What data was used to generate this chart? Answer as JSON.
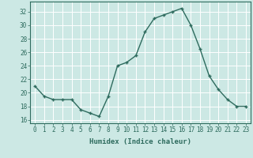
{
  "x": [
    0,
    1,
    2,
    3,
    4,
    5,
    6,
    7,
    8,
    9,
    10,
    11,
    12,
    13,
    14,
    15,
    16,
    17,
    18,
    19,
    20,
    21,
    22,
    23
  ],
  "y": [
    21,
    19.5,
    19,
    19,
    19,
    17.5,
    17,
    16.5,
    19.5,
    24,
    24.5,
    25.5,
    29,
    31,
    31.5,
    32,
    32.5,
    30,
    26.5,
    22.5,
    20.5,
    19,
    18,
    18
  ],
  "line_color": "#2e6b5e",
  "marker_color": "#2e6b5e",
  "bg_color": "#cce8e4",
  "grid_color": "#ffffff",
  "xlabel": "Humidex (Indice chaleur)",
  "ylim": [
    15.5,
    33.5
  ],
  "xlim": [
    -0.5,
    23.5
  ],
  "yticks": [
    16,
    18,
    20,
    22,
    24,
    26,
    28,
    30,
    32
  ],
  "xticks": [
    0,
    1,
    2,
    3,
    4,
    5,
    6,
    7,
    8,
    9,
    10,
    11,
    12,
    13,
    14,
    15,
    16,
    17,
    18,
    19,
    20,
    21,
    22,
    23
  ],
  "xlabel_fontsize": 6.5,
  "tick_fontsize": 5.5
}
